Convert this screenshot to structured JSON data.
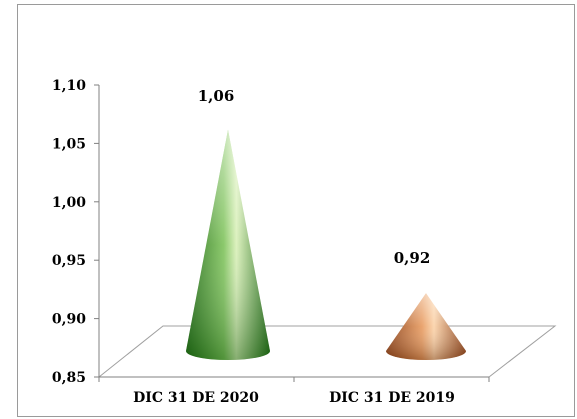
{
  "chart_data": {
    "type": "bar",
    "shape": "cone",
    "categories": [
      "DIC 31 DE 2020",
      "DIC 31 DE 2019"
    ],
    "values": [
      1.06,
      0.92
    ],
    "data_labels": [
      "1,06",
      "0,92"
    ],
    "ylim": [
      0.85,
      1.1
    ],
    "yticks": [
      0.85,
      0.9,
      0.95,
      1.0,
      1.05,
      1.1
    ],
    "ytick_labels": [
      "0,85",
      "0,90",
      "0,95",
      "1,00",
      "1,05",
      "1,10"
    ],
    "title": "",
    "xlabel": "",
    "ylabel": "",
    "grid": false,
    "legend": "none",
    "colors": {
      "series_2020": "#2e8a22",
      "series_2019": "#c8682e",
      "floor_line": "#9a9a9a",
      "axis": "#808080"
    }
  }
}
